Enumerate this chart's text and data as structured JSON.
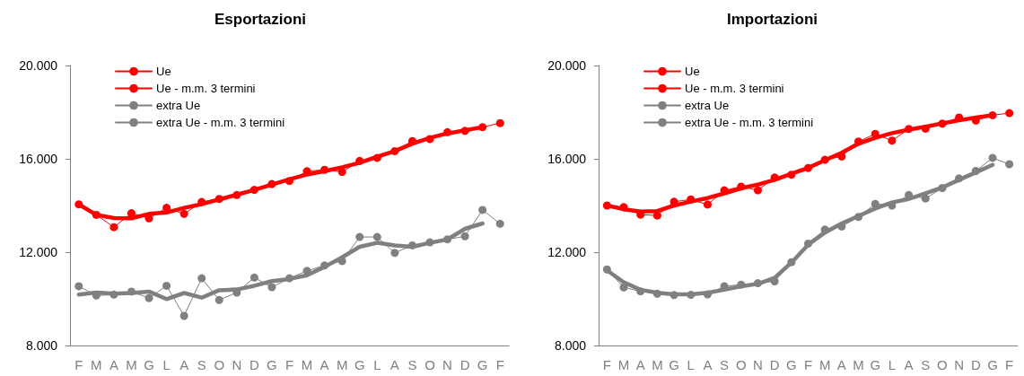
{
  "chart_data": [
    {
      "type": "line",
      "title": "Esportazioni",
      "categories": [
        "F",
        "M",
        "A",
        "M",
        "G",
        "L",
        "A",
        "S",
        "O",
        "N",
        "D",
        "G",
        "F",
        "M",
        "A",
        "M",
        "G",
        "L",
        "A",
        "S",
        "O",
        "N",
        "D",
        "G",
        "F"
      ],
      "ylim": [
        8000,
        20000
      ],
      "yticks": [
        {
          "value": 8000,
          "label": "8.000"
        },
        {
          "value": 12000,
          "label": "12.000"
        },
        {
          "value": 16000,
          "label": "16.000"
        },
        {
          "value": 20000,
          "label": "20.000"
        }
      ],
      "grid": false,
      "legend": "top left",
      "series": [
        {
          "name": "Ue",
          "color": "#ff0000",
          "marker": "circle",
          "values": [
            14050,
            13600,
            13070,
            13670,
            13450,
            13900,
            13640,
            14150,
            14280,
            14450,
            14670,
            14920,
            15050,
            15470,
            15530,
            15440,
            15910,
            16040,
            16330,
            16760,
            16850,
            17140,
            17200,
            17360,
            17530
          ]
        },
        {
          "name": "Ue - m.m. 3 termini",
          "color": "#ff0000",
          "marker": "none",
          "values": [
            14050,
            13600,
            13460,
            13450,
            13640,
            13700,
            13900,
            14060,
            14260,
            14460,
            14670,
            14900,
            15120,
            15330,
            15470,
            15640,
            15830,
            16090,
            16330,
            16650,
            16900,
            17090,
            17220,
            17360,
            null
          ]
        },
        {
          "name": "extra Ue",
          "color": "#808080",
          "marker": "circle",
          "values": [
            10540,
            10140,
            10180,
            10310,
            10030,
            10560,
            9270,
            10880,
            9950,
            10270,
            10910,
            10500,
            10880,
            11200,
            11430,
            11620,
            12650,
            12650,
            11970,
            12290,
            12420,
            12550,
            12680,
            13810,
            13220
          ]
        },
        {
          "name": "extra Ue - m.m. 3 termini",
          "color": "#808080",
          "marker": "none",
          "values": [
            10180,
            10270,
            10220,
            10250,
            10310,
            9990,
            10250,
            10050,
            10370,
            10400,
            10560,
            10760,
            10850,
            11010,
            11370,
            11780,
            12230,
            12400,
            12290,
            12230,
            12400,
            12550,
            13000,
            13230,
            null
          ]
        }
      ]
    },
    {
      "type": "line",
      "title": "Importazioni",
      "categories": [
        "F",
        "M",
        "A",
        "M",
        "G",
        "L",
        "A",
        "S",
        "O",
        "N",
        "D",
        "G",
        "F",
        "M",
        "A",
        "M",
        "G",
        "L",
        "A",
        "S",
        "O",
        "N",
        "D",
        "G",
        "F"
      ],
      "ylim": [
        8000,
        20000
      ],
      "yticks": [
        {
          "value": 8000,
          "label": "8.000"
        },
        {
          "value": 12000,
          "label": "12.000"
        },
        {
          "value": 16000,
          "label": "16.000"
        },
        {
          "value": 20000,
          "label": "20.000"
        }
      ],
      "grid": false,
      "legend": "top left",
      "series": [
        {
          "name": "Ue",
          "color": "#ff0000",
          "marker": "circle",
          "values": [
            14000,
            13930,
            13610,
            13570,
            14160,
            14260,
            14040,
            14650,
            14810,
            14650,
            15200,
            15320,
            15610,
            15960,
            16100,
            16740,
            17070,
            16780,
            17280,
            17290,
            17510,
            17770,
            17640,
            17870,
            17960
          ]
        },
        {
          "name": "Ue - m.m. 3 termini",
          "color": "#ff0000",
          "marker": "none",
          "values": [
            14000,
            13840,
            13740,
            13760,
            14000,
            14170,
            14320,
            14520,
            14740,
            14900,
            15100,
            15360,
            15610,
            15940,
            16260,
            16650,
            16900,
            17100,
            17250,
            17380,
            17520,
            17650,
            17770,
            17870,
            null
          ]
        },
        {
          "name": "extra Ue",
          "color": "#808080",
          "marker": "circle",
          "values": [
            11260,
            10490,
            10320,
            10220,
            10160,
            10170,
            10190,
            10540,
            10610,
            10670,
            10750,
            11570,
            12370,
            12970,
            13100,
            13510,
            14070,
            14000,
            14450,
            14300,
            14750,
            15160,
            15480,
            16040,
            15770
          ]
        },
        {
          "name": "extra Ue - m.m. 3 termini",
          "color": "#808080",
          "marker": "none",
          "values": [
            11220,
            10710,
            10390,
            10260,
            10190,
            10190,
            10260,
            10390,
            10540,
            10640,
            10900,
            11550,
            12320,
            12840,
            13230,
            13550,
            13870,
            14130,
            14280,
            14520,
            14770,
            15100,
            15420,
            15740,
            null
          ]
        }
      ]
    }
  ]
}
